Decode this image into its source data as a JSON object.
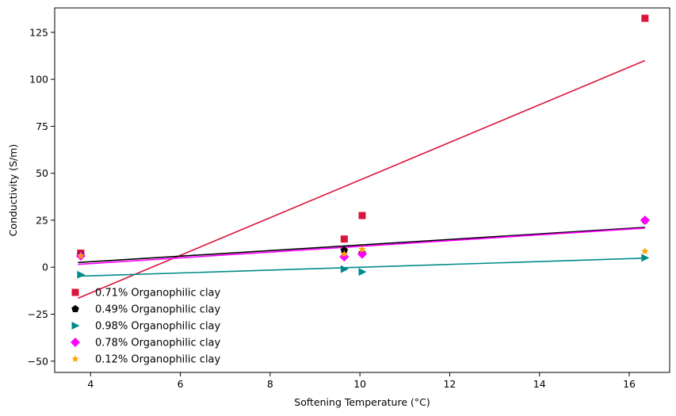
{
  "chart_data": {
    "type": "scatter",
    "xlabel": "Softening Temperature (°C)",
    "ylabel": "Conductivity (S/m)",
    "xlim": [
      3.2,
      16.9
    ],
    "ylim": [
      -56,
      138
    ],
    "x_ticks": [
      4,
      6,
      8,
      10,
      12,
      14,
      16
    ],
    "y_ticks": [
      -50,
      -25,
      0,
      25,
      50,
      75,
      100,
      125
    ],
    "grid": false,
    "legend_position": "lower-left",
    "series": [
      {
        "name": "0.71% Organophilic clay",
        "color": "#dc143c",
        "marker": "square",
        "x": [
          3.78,
          9.65,
          10.05,
          16.35
        ],
        "y": [
          7.5,
          15.0,
          27.5,
          132.5
        ],
        "fit_x": [
          3.72,
          16.35
        ],
        "fit_y": [
          -16.5,
          110.0
        ]
      },
      {
        "name": "0.49% Organophilic clay",
        "color": "#000000",
        "marker": "pentagon",
        "x": [
          3.78,
          9.65,
          10.05,
          16.35
        ],
        "y": [
          6.5,
          9.0,
          7.5,
          25.0
        ],
        "fit_x": [
          3.72,
          16.35
        ],
        "fit_y": [
          2.5,
          21.2
        ]
      },
      {
        "name": "0.98% Organophilic clay",
        "color": "#008b8b",
        "marker": "triangle-right",
        "x": [
          3.78,
          9.65,
          10.05,
          16.35
        ],
        "y": [
          -4.0,
          -1.0,
          -2.5,
          5.0
        ],
        "fit_x": [
          3.72,
          16.35
        ],
        "fit_y": [
          -4.8,
          4.8
        ]
      },
      {
        "name": "0.78% Organophilic clay",
        "color": "#ff00ff",
        "marker": "diamond",
        "x": [
          3.78,
          9.65,
          10.05,
          16.35
        ],
        "y": [
          6.0,
          5.5,
          7.0,
          25.0
        ],
        "fit_x": [
          3.72,
          16.35
        ],
        "fit_y": [
          1.5,
          20.8
        ]
      },
      {
        "name": "0.12% Organophilic clay",
        "color": "#ffa500",
        "marker": "star",
        "x": [
          3.78,
          9.65,
          10.05,
          16.35
        ],
        "y": [
          6.0,
          7.0,
          9.5,
          8.5
        ],
        "fit_x": [],
        "fit_y": []
      }
    ]
  }
}
